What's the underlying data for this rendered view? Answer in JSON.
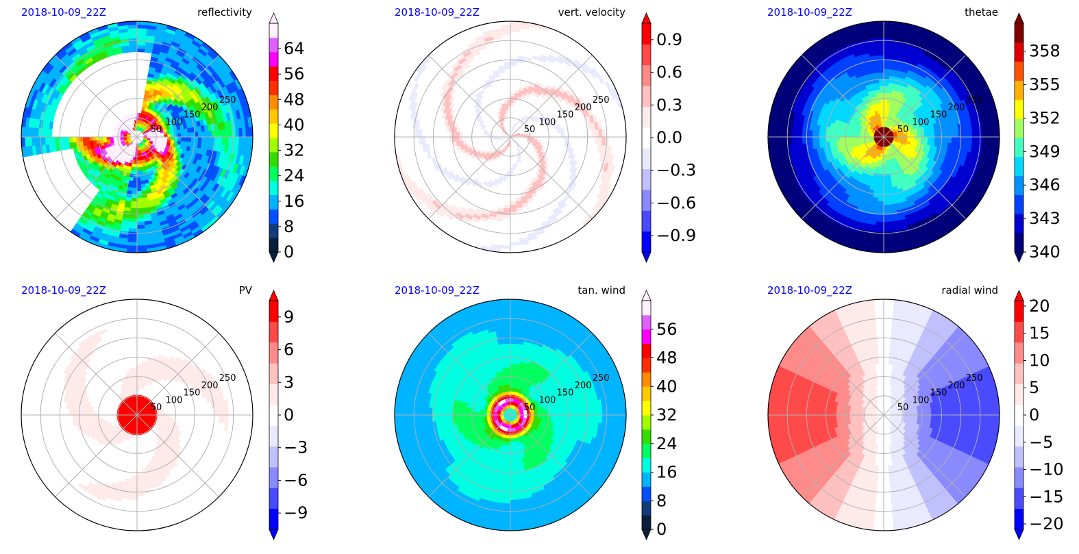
{
  "chart_data": [
    {
      "type": "heatmap",
      "projection": "polar",
      "timestamp": "2018-10-09_22Z",
      "title": "reflectivity",
      "radial_ticks": [
        "50",
        "100",
        "150",
        "200",
        "250"
      ],
      "radial_range": [
        0,
        300
      ],
      "grid": true,
      "colorbar": {
        "ticks": [
          "0",
          "8",
          "16",
          "24",
          "32",
          "40",
          "48",
          "56",
          "64"
        ],
        "min": 0,
        "max": 72,
        "extend": "both"
      },
      "colormap": [
        "#0a1f3c",
        "#123d7a",
        "#0050ff",
        "#00b4ff",
        "#00ffe0",
        "#00ff60",
        "#33dd00",
        "#a0ff00",
        "#ffff00",
        "#ffc800",
        "#ff8c00",
        "#ff3000",
        "#ff0000",
        "#ff00ff",
        "#e060ff",
        "#fff0ff"
      ],
      "pattern": "reflectivity"
    },
    {
      "type": "heatmap",
      "projection": "polar",
      "timestamp": "2018-10-09_22Z",
      "title": "vert. velocity",
      "radial_ticks": [
        "50",
        "100",
        "150",
        "200",
        "250"
      ],
      "radial_range": [
        0,
        300
      ],
      "grid": true,
      "colorbar": {
        "ticks": [
          "−0.9",
          "−0.6",
          "−0.3",
          "0.0",
          "0.3",
          "0.6",
          "0.9"
        ],
        "min": -1.05,
        "max": 1.05,
        "extend": "both"
      },
      "colormap": [
        "#0000ff",
        "#4a4aff",
        "#8a8aff",
        "#c0c0ff",
        "#eaeaff",
        "#ffffff",
        "#ffeaea",
        "#ffc0c0",
        "#ff8a8a",
        "#ff4a4a",
        "#ff0000"
      ],
      "pattern": "velocity"
    },
    {
      "type": "heatmap",
      "projection": "polar",
      "timestamp": "2018-10-09_22Z",
      "title": "thetae",
      "radial_ticks": [
        "50",
        "100",
        "150",
        "200",
        "250"
      ],
      "radial_range": [
        0,
        300
      ],
      "grid": true,
      "colorbar": {
        "ticks": [
          "340",
          "343",
          "346",
          "349",
          "352",
          "355",
          "358"
        ],
        "min": 340,
        "max": 360.5,
        "extend": "both"
      },
      "colormap": [
        "#00007a",
        "#0000d0",
        "#0040ff",
        "#0090ff",
        "#00d8ff",
        "#40ffc0",
        "#a0ff60",
        "#ffff00",
        "#ffb000",
        "#ff5000",
        "#e00000",
        "#800000"
      ],
      "pattern": "thetae"
    },
    {
      "type": "heatmap",
      "projection": "polar",
      "timestamp": "2018-10-09_22Z",
      "title": "PV",
      "radial_ticks": [
        "50",
        "100",
        "150",
        "200",
        "250"
      ],
      "radial_range": [
        0,
        300
      ],
      "grid": true,
      "colorbar": {
        "ticks": [
          "−9",
          "−6",
          "−3",
          "0",
          "3",
          "6",
          "9"
        ],
        "min": -10.5,
        "max": 10.5,
        "extend": "both"
      },
      "colormap": [
        "#0000ff",
        "#4a4aff",
        "#8a8aff",
        "#c0c0ff",
        "#eaeaff",
        "#ffffff",
        "#ffeaea",
        "#ffc0c0",
        "#ff8a8a",
        "#ff4a4a",
        "#ff0000"
      ],
      "pattern": "pv"
    },
    {
      "type": "heatmap",
      "projection": "polar",
      "timestamp": "2018-10-09_22Z",
      "title": "tan. wind",
      "radial_ticks": [
        "50",
        "100",
        "150",
        "200",
        "250"
      ],
      "radial_range": [
        0,
        300
      ],
      "grid": true,
      "colorbar": {
        "ticks": [
          "0",
          "8",
          "16",
          "24",
          "32",
          "40",
          "48",
          "56"
        ],
        "min": 0,
        "max": 64,
        "extend": "both"
      },
      "colormap": [
        "#0a1f3c",
        "#123d7a",
        "#0050ff",
        "#00b4ff",
        "#00ffe0",
        "#00ff60",
        "#33dd00",
        "#a0ff00",
        "#ffff00",
        "#ffc800",
        "#ff8c00",
        "#ff3000",
        "#ff0000",
        "#ff00ff",
        "#e060ff",
        "#fff0ff"
      ],
      "pattern": "tanwind"
    },
    {
      "type": "heatmap",
      "projection": "polar",
      "timestamp": "2018-10-09_22Z",
      "title": "radial wind",
      "radial_ticks": [
        "50",
        "100",
        "150",
        "200",
        "250"
      ],
      "radial_range": [
        0,
        300
      ],
      "grid": true,
      "colorbar": {
        "ticks": [
          "−20",
          "−15",
          "−10",
          "−5",
          "0",
          "5",
          "10",
          "15",
          "20"
        ],
        "min": -21,
        "max": 21,
        "extend": "both"
      },
      "colormap": [
        "#0000ff",
        "#4a4aff",
        "#8a8aff",
        "#c0c0ff",
        "#eaeaff",
        "#ffffff",
        "#ffeaea",
        "#ffc0c0",
        "#ff8a8a",
        "#ff4a4a",
        "#ff0000"
      ],
      "pattern": "radial"
    }
  ]
}
